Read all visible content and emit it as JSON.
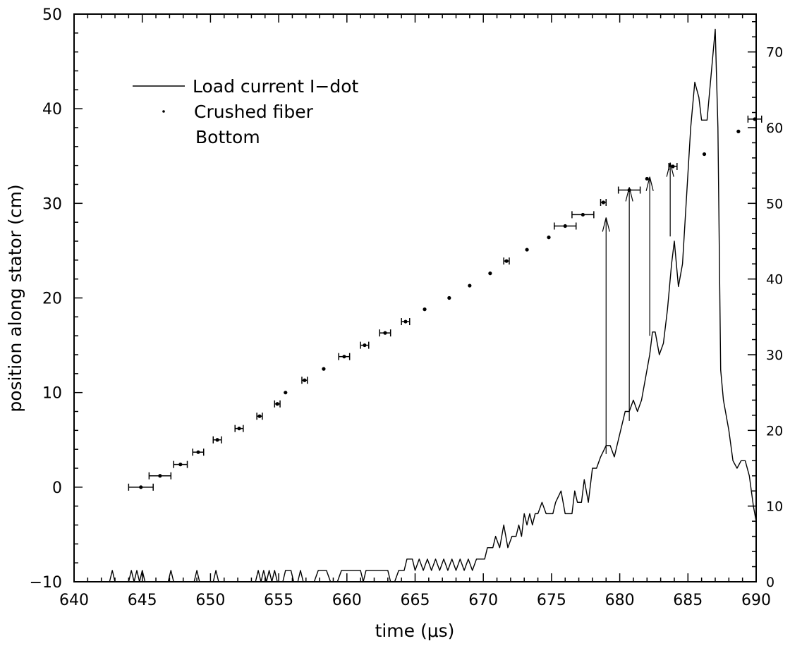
{
  "chart_data": {
    "type": "scatter",
    "xlabel": "time (μs)",
    "ylabel": "position along stator (cm)",
    "xlim": [
      640,
      690
    ],
    "ylim": [
      -10,
      50
    ],
    "y2lim": [
      0,
      75
    ],
    "x_ticks": [
      "640",
      "645",
      "650",
      "655",
      "660",
      "665",
      "670",
      "675",
      "680",
      "685",
      "690"
    ],
    "y_ticks": [
      "−10",
      "0",
      "10",
      "20",
      "30",
      "40",
      "50"
    ],
    "y2_ticks": [
      "0",
      "10",
      "20",
      "30",
      "40",
      "50",
      "60",
      "70"
    ],
    "grid": false,
    "legend_position": "top-left",
    "legend": {
      "line_label": "Load current  I−dot",
      "point_label": "Crushed fiber",
      "point_label_2": "Bottom"
    },
    "series": [
      {
        "name": "Crushed fiber",
        "kind": "points",
        "axis": "left",
        "points": [
          {
            "x": 644.9,
            "y": 0.0,
            "xerr": 0.9
          },
          {
            "x": 646.3,
            "y": 1.2,
            "xerr": 0.8
          },
          {
            "x": 647.8,
            "y": 2.4,
            "xerr": 0.5
          },
          {
            "x": 649.1,
            "y": 3.7,
            "xerr": 0.4
          },
          {
            "x": 650.5,
            "y": 5.0,
            "xerr": 0.3
          },
          {
            "x": 652.1,
            "y": 6.2,
            "xerr": 0.3
          },
          {
            "x": 653.6,
            "y": 7.5,
            "xerr": 0.2
          },
          {
            "x": 654.9,
            "y": 8.8,
            "xerr": 0.2
          },
          {
            "x": 655.5,
            "y": 10.0,
            "xerr": 0
          },
          {
            "x": 656.9,
            "y": 11.3,
            "xerr": 0.2
          },
          {
            "x": 658.3,
            "y": 12.5,
            "xerr": 0
          },
          {
            "x": 659.8,
            "y": 13.8,
            "xerr": 0.4
          },
          {
            "x": 661.3,
            "y": 15.0,
            "xerr": 0.3
          },
          {
            "x": 662.8,
            "y": 16.3,
            "xerr": 0.4
          },
          {
            "x": 664.3,
            "y": 17.5,
            "xerr": 0.3
          },
          {
            "x": 665.7,
            "y": 18.8,
            "xerr": 0
          },
          {
            "x": 667.5,
            "y": 20.0,
            "xerr": 0
          },
          {
            "x": 669.0,
            "y": 21.3,
            "xerr": 0
          },
          {
            "x": 670.5,
            "y": 22.6,
            "xerr": 0
          },
          {
            "x": 671.7,
            "y": 23.9,
            "xerr": 0.2
          },
          {
            "x": 673.2,
            "y": 25.1,
            "xerr": 0
          },
          {
            "x": 674.8,
            "y": 26.4,
            "xerr": 0
          },
          {
            "x": 676.0,
            "y": 27.6,
            "xerr": 0.8
          },
          {
            "x": 677.3,
            "y": 28.8,
            "xerr": 0.8
          },
          {
            "x": 678.8,
            "y": 30.1,
            "xerr": 0.2
          },
          {
            "x": 680.7,
            "y": 31.4,
            "xerr": 0.8
          },
          {
            "x": 682.0,
            "y": 32.6,
            "xerr": 0
          },
          {
            "x": 683.9,
            "y": 33.9,
            "xerr": 0.3
          },
          {
            "x": 686.2,
            "y": 35.2,
            "xerr": 0
          },
          {
            "x": 688.7,
            "y": 37.6,
            "xerr": 0
          },
          {
            "x": 689.9,
            "y": 38.9,
            "xerr": 0.5
          }
        ]
      },
      {
        "name": "Load current  I−dot",
        "kind": "line",
        "axis": "right",
        "points": [
          [
            640.0,
            0
          ],
          [
            642.6,
            0
          ],
          [
            642.8,
            1.5
          ],
          [
            643.0,
            0
          ],
          [
            644.0,
            0
          ],
          [
            644.2,
            1.5
          ],
          [
            644.4,
            0
          ],
          [
            644.6,
            1.5
          ],
          [
            644.8,
            0
          ],
          [
            645.0,
            1.5
          ],
          [
            645.2,
            0
          ],
          [
            646.9,
            0
          ],
          [
            647.1,
            1.5
          ],
          [
            647.3,
            0
          ],
          [
            648.8,
            0
          ],
          [
            649.0,
            1.5
          ],
          [
            649.2,
            0
          ],
          [
            650.2,
            0
          ],
          [
            650.4,
            1.5
          ],
          [
            650.6,
            0
          ],
          [
            653.3,
            0
          ],
          [
            653.5,
            1.5
          ],
          [
            653.7,
            0
          ],
          [
            653.9,
            1.5
          ],
          [
            654.1,
            0
          ],
          [
            654.3,
            1.5
          ],
          [
            654.5,
            0
          ],
          [
            654.7,
            1.5
          ],
          [
            654.9,
            0
          ],
          [
            655.3,
            0
          ],
          [
            655.5,
            1.5
          ],
          [
            655.9,
            1.5
          ],
          [
            656.1,
            0
          ],
          [
            656.4,
            0
          ],
          [
            656.6,
            1.5
          ],
          [
            656.8,
            0
          ],
          [
            657.6,
            0
          ],
          [
            657.9,
            1.5
          ],
          [
            658.5,
            1.5
          ],
          [
            658.8,
            0
          ],
          [
            659.3,
            0
          ],
          [
            659.6,
            1.5
          ],
          [
            661.0,
            1.5
          ],
          [
            661.2,
            0
          ],
          [
            661.4,
            1.5
          ],
          [
            663.0,
            1.5
          ],
          [
            663.2,
            0
          ],
          [
            663.5,
            0
          ],
          [
            663.8,
            1.5
          ],
          [
            664.2,
            1.5
          ],
          [
            664.4,
            3
          ],
          [
            664.8,
            3
          ],
          [
            665.0,
            1.5
          ],
          [
            665.3,
            3
          ],
          [
            665.6,
            1.5
          ],
          [
            665.9,
            3
          ],
          [
            666.2,
            1.5
          ],
          [
            666.5,
            3
          ],
          [
            666.8,
            1.5
          ],
          [
            667.1,
            3
          ],
          [
            667.4,
            1.5
          ],
          [
            667.7,
            3
          ],
          [
            668.0,
            1.5
          ],
          [
            668.3,
            3
          ],
          [
            668.6,
            1.5
          ],
          [
            668.9,
            3
          ],
          [
            669.2,
            1.5
          ],
          [
            669.5,
            3
          ],
          [
            670.1,
            3
          ],
          [
            670.3,
            4.5
          ],
          [
            670.7,
            4.5
          ],
          [
            670.9,
            6
          ],
          [
            671.2,
            4.5
          ],
          [
            671.5,
            7.5
          ],
          [
            671.8,
            4.5
          ],
          [
            672.1,
            6
          ],
          [
            672.4,
            6
          ],
          [
            672.6,
            7.5
          ],
          [
            672.8,
            6
          ],
          [
            673.0,
            9
          ],
          [
            673.2,
            7.5
          ],
          [
            673.4,
            9
          ],
          [
            673.6,
            7.5
          ],
          [
            673.8,
            9
          ],
          [
            674.0,
            9
          ],
          [
            674.3,
            10.5
          ],
          [
            674.6,
            9
          ],
          [
            675.1,
            9
          ],
          [
            675.3,
            10.5
          ],
          [
            675.7,
            12
          ],
          [
            676.0,
            9
          ],
          [
            676.5,
            9
          ],
          [
            676.7,
            12
          ],
          [
            676.9,
            10.5
          ],
          [
            677.2,
            10.5
          ],
          [
            677.4,
            13.5
          ],
          [
            677.7,
            10.5
          ],
          [
            678.0,
            15
          ],
          [
            678.3,
            15
          ],
          [
            678.6,
            16.5
          ],
          [
            679.0,
            18
          ],
          [
            679.3,
            18
          ],
          [
            679.6,
            16.5
          ],
          [
            680.0,
            19.5
          ],
          [
            680.4,
            22.5
          ],
          [
            680.7,
            22.5
          ],
          [
            681.0,
            24
          ],
          [
            681.3,
            22.5
          ],
          [
            681.6,
            24
          ],
          [
            681.9,
            27
          ],
          [
            682.2,
            30
          ],
          [
            682.4,
            33
          ],
          [
            682.6,
            33
          ],
          [
            682.9,
            30
          ],
          [
            683.2,
            31.5
          ],
          [
            683.5,
            36
          ],
          [
            683.8,
            42
          ],
          [
            684.0,
            45
          ],
          [
            684.3,
            39
          ],
          [
            684.6,
            42
          ],
          [
            684.9,
            51
          ],
          [
            685.2,
            60
          ],
          [
            685.5,
            66
          ],
          [
            685.8,
            64
          ],
          [
            686.0,
            61
          ],
          [
            686.4,
            61
          ],
          [
            686.8,
            69
          ],
          [
            687.0,
            73
          ],
          [
            687.2,
            60
          ],
          [
            687.4,
            28
          ],
          [
            687.6,
            24
          ],
          [
            688.0,
            20
          ],
          [
            688.3,
            16
          ],
          [
            688.6,
            15
          ],
          [
            688.9,
            16
          ],
          [
            689.2,
            16
          ],
          [
            689.5,
            14
          ],
          [
            689.8,
            10
          ],
          [
            690.0,
            8
          ]
        ]
      }
    ],
    "annotations": {
      "arrows": [
        {
          "x": 679.0,
          "y_from": 3.5,
          "y_to": 28.5
        },
        {
          "x": 680.7,
          "y_from": 7.0,
          "y_to": 31.7
        },
        {
          "x": 682.2,
          "y_from": 16.0,
          "y_to": 32.8
        },
        {
          "x": 683.7,
          "y_from": 26.5,
          "y_to": 34.3
        }
      ]
    }
  }
}
